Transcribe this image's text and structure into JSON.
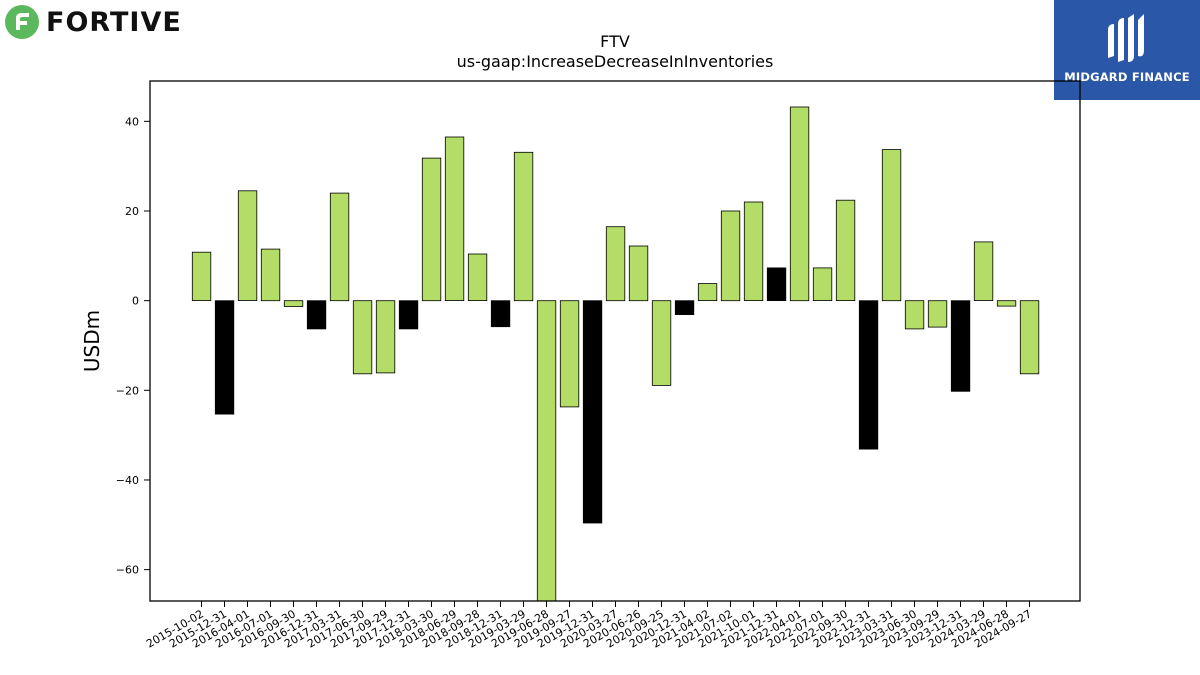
{
  "header": {
    "company_logo_text": "FORTIVE",
    "partner_logo_text": "MIDGARD FINANCE"
  },
  "colors": {
    "positive_bar": "#b3dd66",
    "negative_bar": "#000000",
    "brand_blue": "#2b57a8",
    "fortive_green": "#5cb85c"
  },
  "chart_data": {
    "type": "bar",
    "title": "FTV",
    "subtitle": "us-gaap:IncreaseDecreaseInInventories",
    "xlabel": "",
    "ylabel": "USDm",
    "ylim": [
      -67,
      49
    ],
    "yticks": [
      -60,
      -40,
      -20,
      0,
      20,
      40
    ],
    "grid": false,
    "categories": [
      "2015-10-02",
      "2015-12-31",
      "2016-04-01",
      "2016-07-01",
      "2016-09-30",
      "2016-12-31",
      "2017-03-31",
      "2017-06-30",
      "2017-09-29",
      "2017-12-31",
      "2018-03-30",
      "2018-06-29",
      "2018-09-28",
      "2018-12-31",
      "2019-03-29",
      "2019-06-28",
      "2019-09-27",
      "2019-12-31",
      "2020-03-27",
      "2020-06-26",
      "2020-09-25",
      "2020-12-31",
      "2021-04-02",
      "2021-07-02",
      "2021-10-01",
      "2021-12-31",
      "2022-04-01",
      "2022-07-01",
      "2022-09-30",
      "2022-12-31",
      "2023-03-31",
      "2023-06-30",
      "2023-09-29",
      "2023-12-31",
      "2024-03-29",
      "2024-06-28",
      "2024-09-27"
    ],
    "values": [
      10.8,
      -25.3,
      24.5,
      11.5,
      -1.3,
      -6.3,
      24.0,
      -16.3,
      -16.1,
      -6.3,
      31.8,
      36.5,
      10.4,
      -5.8,
      33.1,
      -67.0,
      -23.7,
      -49.6,
      16.5,
      12.2,
      -18.9,
      -3.1,
      3.8,
      20.0,
      22.0,
      7.3,
      43.2,
      7.3,
      22.4,
      -33.1,
      33.7,
      -6.3,
      -5.9,
      -20.2,
      13.1,
      -1.2,
      -16.3
    ],
    "bar_colors": [
      "green",
      "black",
      "green",
      "green",
      "green",
      "black",
      "green",
      "green",
      "green",
      "black",
      "green",
      "green",
      "green",
      "black",
      "green",
      "green",
      "green",
      "black",
      "green",
      "green",
      "green",
      "black",
      "green",
      "green",
      "green",
      "black",
      "green",
      "green",
      "green",
      "black",
      "green",
      "green",
      "green",
      "black",
      "green",
      "green",
      "green"
    ]
  }
}
